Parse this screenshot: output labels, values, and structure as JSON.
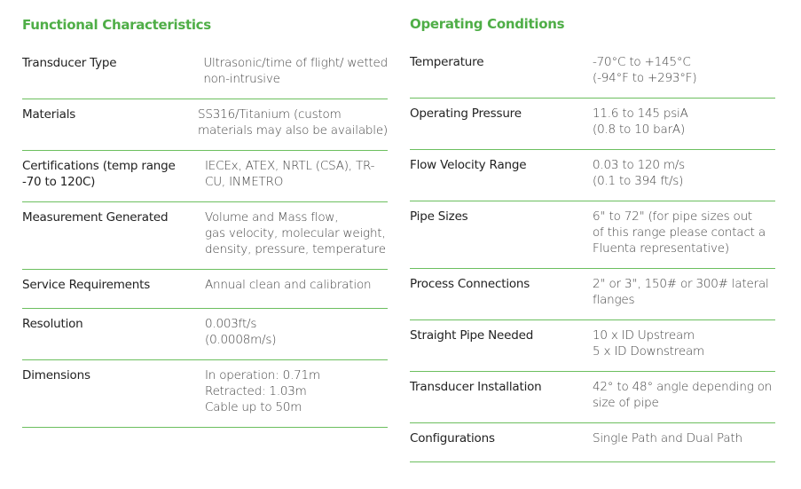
{
  "sections": [
    {
      "title": "Functional Characteristics",
      "rows": [
        {
          "label": [
            "Transducer Type"
          ],
          "value": [
            "Ultrasonic/time of flight/ wetted",
            "non-intrusive"
          ]
        },
        {
          "label": [
            "Materials"
          ],
          "value": [
            "SS316/Titanium (custom",
            "materials may also be available)"
          ]
        },
        {
          "label": [
            "Certifications (temp range",
            "-70 to 120C)"
          ],
          "value": [
            "IECEx, ATEX, NRTL (CSA), TR-",
            "CU, INMETRO"
          ]
        },
        {
          "label": [
            "Measurement Generated"
          ],
          "value": [
            "Volume and Mass flow,",
            "gas velocity, molecular weight,",
            "density, pressure, temperature"
          ]
        },
        {
          "label": [
            "Service Requirements"
          ],
          "value": [
            "Annual clean and calibration"
          ]
        },
        {
          "label": [
            "Resolution"
          ],
          "value": [
            "0.003ft/s",
            "(0.0008m/s)"
          ]
        },
        {
          "label": [
            "Dimensions"
          ],
          "value": [
            "In operation: 0.71m",
            "Retracted: 1.03m",
            "Cable up to 50m"
          ]
        }
      ]
    },
    {
      "title": "Operating Conditions",
      "rows": [
        {
          "label": [
            "Temperature"
          ],
          "value": [
            "-70°C to +145°C",
            "(-94°F to +293°F)"
          ]
        },
        {
          "label": [
            "Operating Pressure"
          ],
          "value": [
            "11.6 to 145 psiA",
            "(0.8 to 10 barA)"
          ]
        },
        {
          "label": [
            "Flow Velocity Range"
          ],
          "value": [
            "0.03 to 120 m/s",
            "(0.1 to 394 ft/s)"
          ]
        },
        {
          "label": [
            "Pipe Sizes"
          ],
          "value": [
            "6\" to 72\" (for pipe sizes out",
            "of this range please contact a",
            "Fluenta representative)"
          ]
        },
        {
          "label": [
            "Process Connections"
          ],
          "value": [
            "2\" or 3\", 150# or 300# lateral",
            "flanges"
          ]
        },
        {
          "label": [
            "Straight Pipe Needed"
          ],
          "value": [
            "10 x ID Upstream",
            "5 x ID Downstream"
          ]
        },
        {
          "label": [
            "Transducer Installation"
          ],
          "value": [
            "42° to 48° angle depending on",
            "size of pipe"
          ]
        },
        {
          "label": [
            "Configurations"
          ],
          "value": [
            "Single Path and Dual Path"
          ]
        }
      ]
    }
  ]
}
